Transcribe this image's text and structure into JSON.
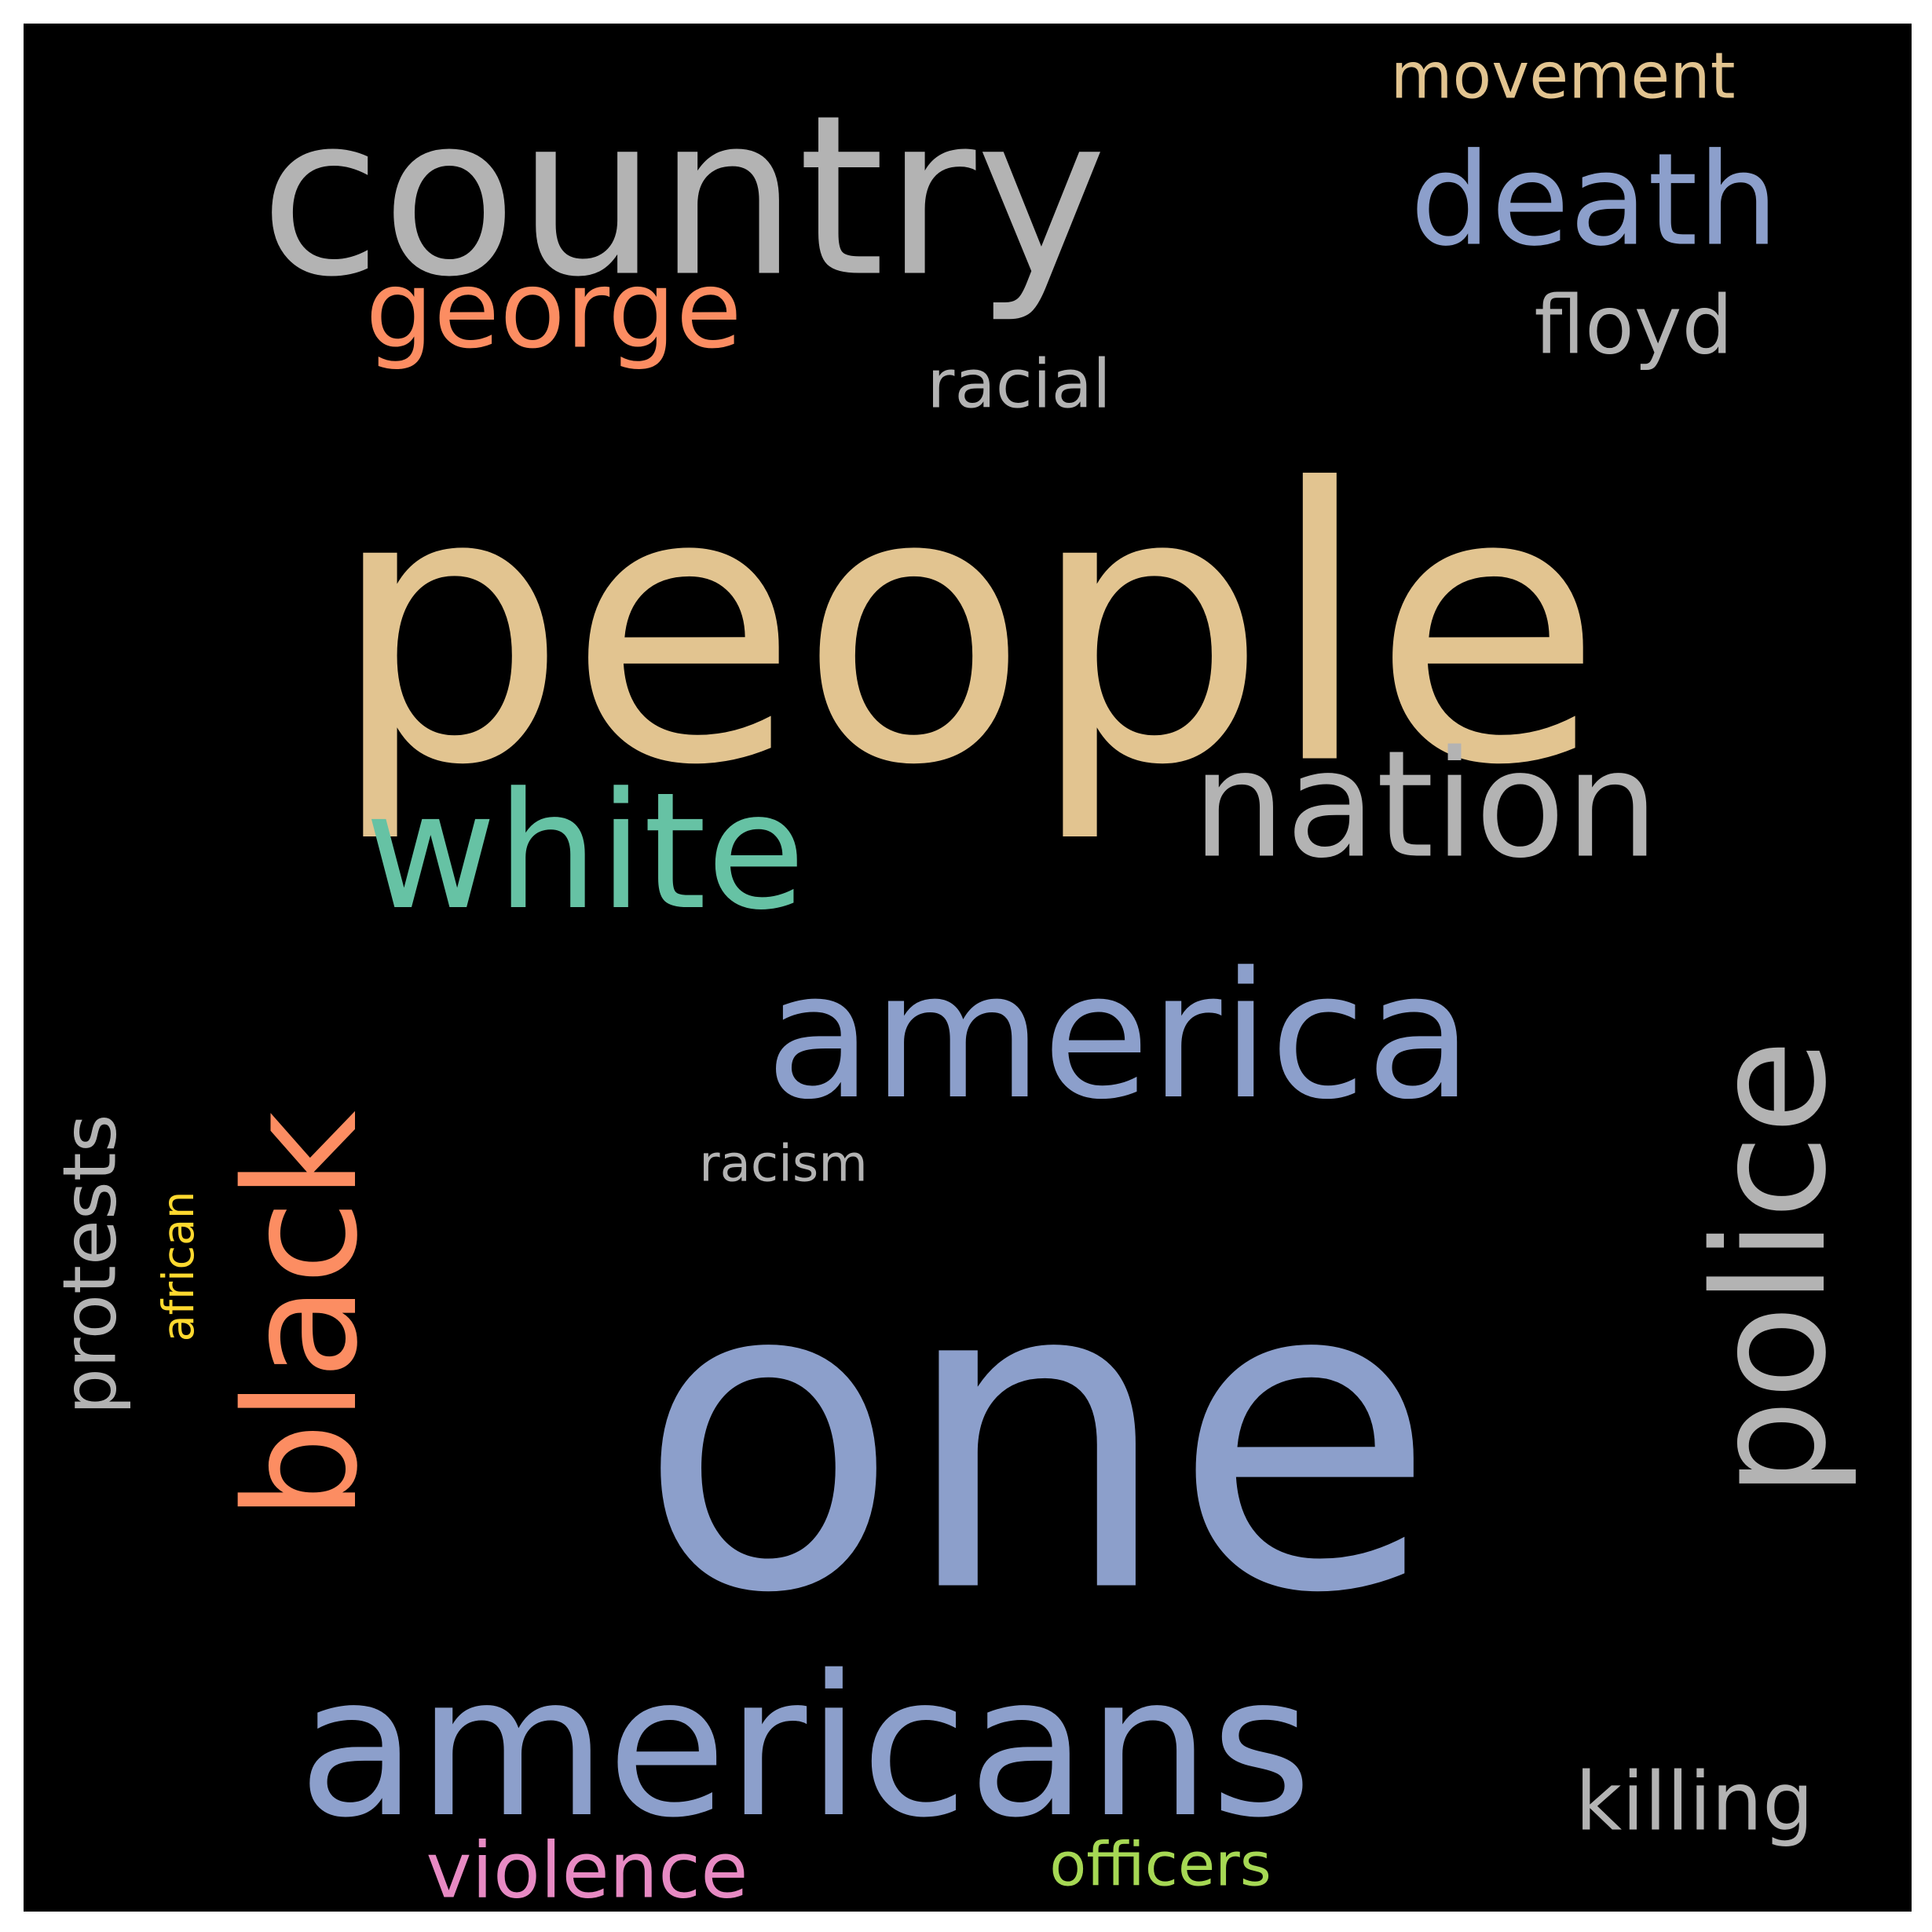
{
  "colors": {
    "background": "#000000",
    "border": "#ffffff"
  },
  "words": [
    {
      "text": "people",
      "color": "#e2c490"
    },
    {
      "text": "one",
      "color": "#8c9fcb"
    },
    {
      "text": "country",
      "color": "#b3b3b3"
    },
    {
      "text": "americans",
      "color": "#8c9fcb"
    },
    {
      "text": "america",
      "color": "#8c9fcb"
    },
    {
      "text": "white",
      "color": "#66c2a4"
    },
    {
      "text": "nation",
      "color": "#b3b3b3"
    },
    {
      "text": "black",
      "color": "#fc8d62"
    },
    {
      "text": "police",
      "color": "#b3b3b3"
    },
    {
      "text": "death",
      "color": "#8c9fcb"
    },
    {
      "text": "george",
      "color": "#fc8d62"
    },
    {
      "text": "floyd",
      "color": "#b3b3b3"
    },
    {
      "text": "protests",
      "color": "#b3b3b3"
    },
    {
      "text": "killing",
      "color": "#b3b3b3"
    },
    {
      "text": "movement",
      "color": "#e2c490"
    },
    {
      "text": "racial",
      "color": "#b3b3b3"
    },
    {
      "text": "violence",
      "color": "#e78ac3"
    },
    {
      "text": "officers",
      "color": "#a6d854"
    },
    {
      "text": "african",
      "color": "#ffd92f"
    },
    {
      "text": "racism",
      "color": "#b3b3b3"
    }
  ]
}
